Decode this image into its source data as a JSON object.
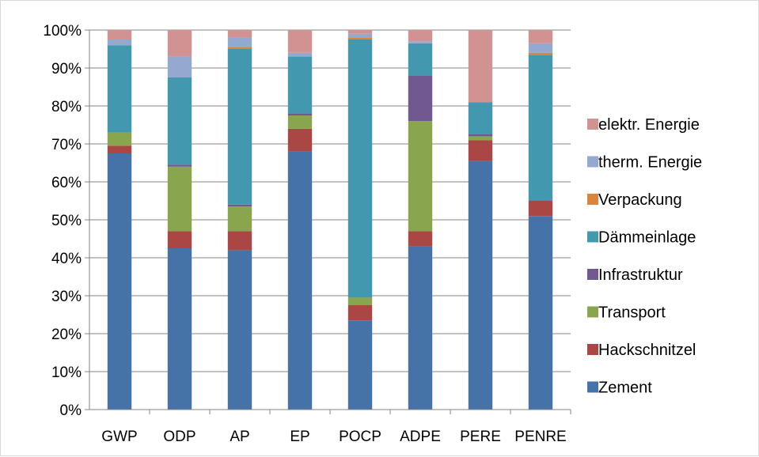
{
  "chart_data": {
    "type": "bar",
    "stacked": true,
    "percent": true,
    "title": "",
    "xlabel": "",
    "ylabel": "",
    "ylim": [
      0,
      100
    ],
    "y_ticks": [
      "0%",
      "10%",
      "20%",
      "30%",
      "40%",
      "50%",
      "60%",
      "70%",
      "80%",
      "90%",
      "100%"
    ],
    "grid": true,
    "legend_position": "right",
    "categories": [
      "GWP",
      "ODP",
      "AP",
      "EP",
      "POCP",
      "ADPE",
      "PERE",
      "PENRE"
    ],
    "series": [
      {
        "name": "Zement",
        "color": "#4572a7",
        "values": [
          67.5,
          42.5,
          42.0,
          68.0,
          23.5,
          43.0,
          65.5,
          51.0
        ]
      },
      {
        "name": "Hackschnitzel",
        "color": "#aa4643",
        "values": [
          2.0,
          4.5,
          5.0,
          6.0,
          4.0,
          4.0,
          5.5,
          4.0
        ]
      },
      {
        "name": "Transport",
        "color": "#89a54e",
        "values": [
          3.5,
          17.0,
          6.5,
          3.5,
          2.0,
          29.0,
          1.0,
          0.0
        ]
      },
      {
        "name": "Infrastruktur",
        "color": "#71588f",
        "values": [
          0.0,
          0.5,
          0.5,
          0.5,
          0.0,
          12.0,
          0.5,
          0.0
        ]
      },
      {
        "name": "Dämmeinlage",
        "color": "#4198af",
        "values": [
          23.0,
          23.0,
          41.0,
          15.0,
          68.0,
          8.5,
          8.5,
          38.5
        ]
      },
      {
        "name": "Verpackung",
        "color": "#db843d",
        "values": [
          0.0,
          0.0,
          0.5,
          0.0,
          0.5,
          0.0,
          0.0,
          0.5
        ]
      },
      {
        "name": "therm. Energie",
        "color": "#93a9cf",
        "values": [
          1.5,
          5.5,
          2.5,
          1.0,
          1.0,
          0.5,
          0.0,
          2.5
        ]
      },
      {
        "name": "elektr. Energie",
        "color": "#d19392",
        "values": [
          2.5,
          7.0,
          2.0,
          6.0,
          1.0,
          3.0,
          19.0,
          3.5
        ]
      }
    ],
    "legend_order": [
      "elektr. Energie",
      "therm. Energie",
      "Verpackung",
      "Dämmeinlage",
      "Infrastruktur",
      "Transport",
      "Hackschnitzel",
      "Zement"
    ]
  }
}
